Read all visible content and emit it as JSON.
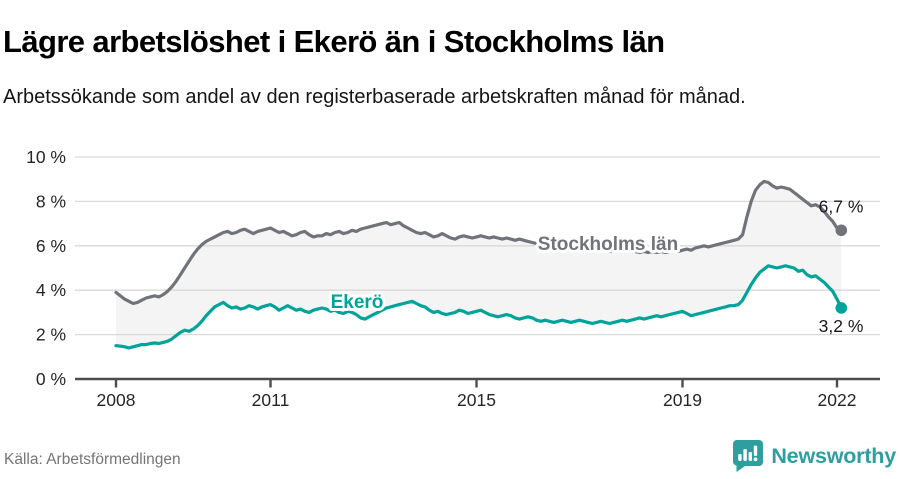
{
  "header": {
    "title": "Lägre arbetslöshet i Ekerö än i Stockholms län",
    "subtitle": "Arbetssökande som andel av den registerbaserade arbetskraften månad för månad."
  },
  "footer": {
    "source": "Källa: Arbetsförmedlingen",
    "brand": "Newsworthy",
    "brand_color": "#2f9e9e"
  },
  "chart_data": {
    "type": "line",
    "unit": "%",
    "frequency": "monthly",
    "x_start": "2008-01",
    "x_end": "2022-02",
    "ylim": [
      0,
      10
    ],
    "grid": true,
    "y_ticks": [
      "0 %",
      "2 %",
      "4 %",
      "6 %",
      "8 %",
      "10 %"
    ],
    "y_tick_values": [
      0,
      2,
      4,
      6,
      8,
      10
    ],
    "x_ticks": [
      "2008",
      "2011",
      "2015",
      "2019",
      "2022"
    ],
    "x_tick_years": [
      2008,
      2011,
      2015,
      2019,
      2022
    ],
    "fill_between_color": "#f4f4f4",
    "colors": {
      "grid": "#d9d9d9",
      "axis": "#4d4d4d",
      "tick_label": "#262626",
      "annotation": "#1a1a1a"
    },
    "series": [
      {
        "name": "Stockholms län",
        "color": "#70747a",
        "end_label": "6,7 %",
        "end_value": 6.7,
        "values": [
          3.9,
          3.75,
          3.6,
          3.5,
          3.4,
          3.45,
          3.55,
          3.65,
          3.7,
          3.75,
          3.7,
          3.8,
          3.95,
          4.15,
          4.4,
          4.7,
          5.0,
          5.3,
          5.6,
          5.85,
          6.05,
          6.2,
          6.3,
          6.4,
          6.5,
          6.6,
          6.65,
          6.55,
          6.6,
          6.7,
          6.75,
          6.65,
          6.55,
          6.65,
          6.7,
          6.75,
          6.8,
          6.7,
          6.6,
          6.65,
          6.55,
          6.45,
          6.5,
          6.6,
          6.65,
          6.5,
          6.4,
          6.45,
          6.45,
          6.55,
          6.5,
          6.6,
          6.65,
          6.55,
          6.6,
          6.7,
          6.65,
          6.75,
          6.8,
          6.85,
          6.9,
          6.95,
          7.0,
          7.05,
          6.95,
          7.0,
          7.05,
          6.9,
          6.8,
          6.7,
          6.6,
          6.55,
          6.6,
          6.5,
          6.4,
          6.45,
          6.55,
          6.45,
          6.35,
          6.3,
          6.4,
          6.45,
          6.4,
          6.35,
          6.4,
          6.45,
          6.4,
          6.35,
          6.4,
          6.35,
          6.3,
          6.35,
          6.3,
          6.25,
          6.3,
          6.25,
          6.2,
          6.15,
          6.1,
          6.15,
          6.1,
          6.05,
          6.0,
          6.05,
          6.0,
          5.95,
          5.9,
          5.95,
          5.9,
          5.85,
          5.9,
          5.85,
          5.8,
          5.85,
          5.8,
          5.75,
          5.8,
          5.85,
          5.8,
          5.75,
          5.8,
          5.75,
          5.7,
          5.75,
          5.7,
          5.75,
          5.7,
          5.75,
          5.7,
          5.75,
          5.8,
          5.75,
          5.8,
          5.85,
          5.8,
          5.9,
          5.95,
          6.0,
          5.95,
          6.0,
          6.05,
          6.1,
          6.15,
          6.2,
          6.25,
          6.3,
          6.5,
          7.3,
          8.0,
          8.5,
          8.75,
          8.9,
          8.85,
          8.7,
          8.6,
          8.65,
          8.6,
          8.55,
          8.4,
          8.25,
          8.1,
          7.95,
          7.8,
          7.85,
          7.75,
          7.55,
          7.3,
          7.1,
          6.8,
          6.7
        ]
      },
      {
        "name": "Ekerö",
        "color": "#00a39a",
        "end_label": "3,2 %",
        "end_value": 3.2,
        "values": [
          1.5,
          1.48,
          1.45,
          1.4,
          1.45,
          1.5,
          1.55,
          1.55,
          1.6,
          1.62,
          1.6,
          1.65,
          1.7,
          1.8,
          1.95,
          2.1,
          2.2,
          2.15,
          2.25,
          2.4,
          2.6,
          2.85,
          3.05,
          3.25,
          3.35,
          3.45,
          3.3,
          3.2,
          3.25,
          3.15,
          3.2,
          3.3,
          3.25,
          3.15,
          3.25,
          3.3,
          3.35,
          3.25,
          3.1,
          3.2,
          3.3,
          3.2,
          3.1,
          3.15,
          3.05,
          3.0,
          3.1,
          3.15,
          3.2,
          3.15,
          3.05,
          3.1,
          3.0,
          2.95,
          3.05,
          3.0,
          2.9,
          2.75,
          2.7,
          2.8,
          2.9,
          3.0,
          3.1,
          3.2,
          3.25,
          3.3,
          3.35,
          3.4,
          3.45,
          3.5,
          3.4,
          3.3,
          3.25,
          3.1,
          3.0,
          3.05,
          2.95,
          2.9,
          2.95,
          3.0,
          3.1,
          3.05,
          2.95,
          3.0,
          3.05,
          3.1,
          3.0,
          2.9,
          2.85,
          2.8,
          2.85,
          2.9,
          2.85,
          2.75,
          2.7,
          2.75,
          2.8,
          2.75,
          2.65,
          2.6,
          2.65,
          2.6,
          2.55,
          2.6,
          2.65,
          2.6,
          2.55,
          2.6,
          2.65,
          2.6,
          2.55,
          2.5,
          2.55,
          2.6,
          2.55,
          2.5,
          2.55,
          2.6,
          2.65,
          2.6,
          2.65,
          2.7,
          2.75,
          2.7,
          2.75,
          2.8,
          2.85,
          2.8,
          2.85,
          2.9,
          2.95,
          3.0,
          3.05,
          2.95,
          2.85,
          2.9,
          2.95,
          3.0,
          3.05,
          3.1,
          3.15,
          3.2,
          3.25,
          3.3,
          3.3,
          3.35,
          3.55,
          3.9,
          4.25,
          4.55,
          4.8,
          4.95,
          5.1,
          5.05,
          5.0,
          5.05,
          5.1,
          5.05,
          5.0,
          4.85,
          4.9,
          4.7,
          4.6,
          4.65,
          4.5,
          4.35,
          4.15,
          3.95,
          3.6,
          3.2
        ]
      }
    ]
  }
}
